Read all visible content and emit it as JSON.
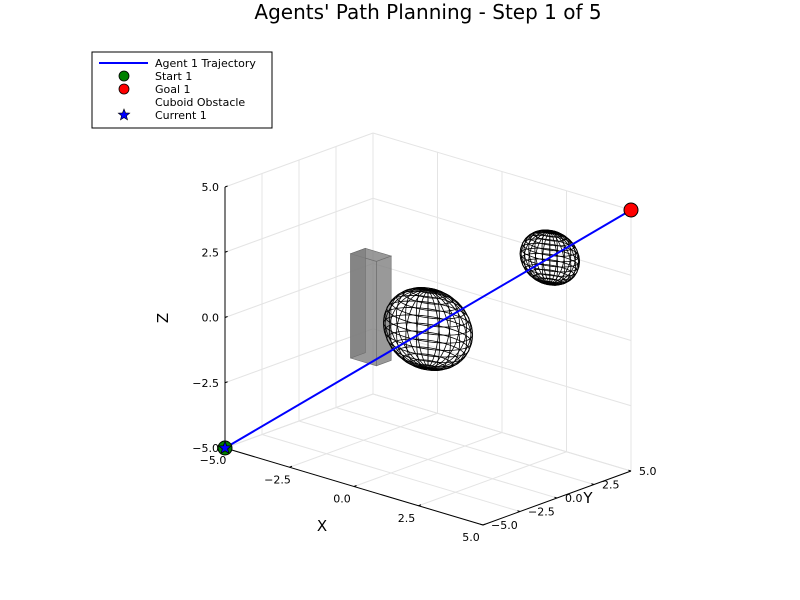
{
  "chart_data": {
    "type": "line3d",
    "title": "Agents' Path Planning - Step 1 of 5",
    "xlabel": "X",
    "ylabel": "Y",
    "zlabel": "Z",
    "xlim": [
      -5,
      5
    ],
    "ylim": [
      -5,
      5
    ],
    "zlim": [
      -5,
      5
    ],
    "x_ticks": [
      "−5.0",
      "−2.5",
      "0.0",
      "2.5",
      "5.0"
    ],
    "y_ticks": [
      "−5.0",
      "−2.5",
      "0.0",
      "2.5",
      "5.0"
    ],
    "z_ticks": [
      "−5.0",
      "−2.5",
      "0.0",
      "2.5",
      "5.0"
    ],
    "grid": true,
    "legend_position": "top-left",
    "series": [
      {
        "name": "Agent 1 Trajectory",
        "kind": "line",
        "color": "#0000ff",
        "points": [
          [
            -5,
            -5,
            -5
          ],
          [
            5,
            5,
            5
          ]
        ]
      }
    ],
    "markers": [
      {
        "name": "Start 1",
        "shape": "circle",
        "color": "#008000",
        "point": [
          -5,
          -5,
          -5
        ]
      },
      {
        "name": "Goal 1",
        "shape": "circle",
        "color": "#ff0000",
        "point": [
          5,
          5,
          5
        ]
      },
      {
        "name": "Current 1",
        "shape": "star",
        "color": "#0000ff",
        "point": [
          -5,
          -5,
          -5
        ]
      }
    ],
    "obstacles": [
      {
        "name": "Cuboid Obstacle",
        "kind": "cuboid",
        "color": "#808080",
        "x": [
          -3,
          -2
        ],
        "y": [
          0,
          1
        ],
        "z": [
          -2,
          2
        ]
      },
      {
        "kind": "sphere",
        "color": "#000000",
        "center": [
          0,
          0,
          0
        ],
        "radius": 1.5
      },
      {
        "kind": "sphere",
        "color": "#000000",
        "center": [
          3,
          3,
          3
        ],
        "radius": 1.0
      }
    ]
  }
}
